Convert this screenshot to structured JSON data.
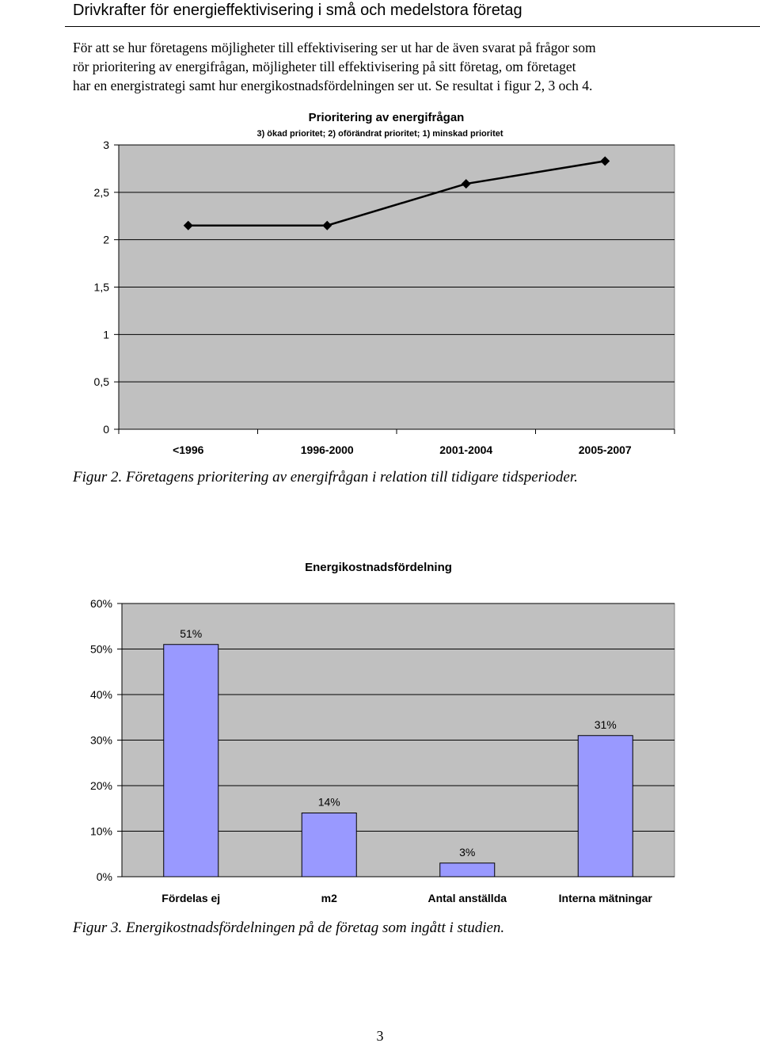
{
  "header": {
    "title": "Drivkrafter för energieffektivisering i små och medelstora företag"
  },
  "intro": {
    "lines": [
      "För att se hur företagens möjligheter till effektivisering ser ut har de även svarat på frågor som",
      "rör prioritering av energifrågan, möjligheter till effektivisering på sitt företag, om företaget",
      "har en energistrategi samt hur energikostnadsfördelningen ser ut. Se resultat i figur 2, 3 och 4."
    ]
  },
  "figure2": {
    "caption": "Figur 2. Företagens prioritering av energifrågan i relation till tidigare tidsperioder.",
    "chart_data": {
      "type": "line",
      "title": "Prioritering av energifrågan",
      "subtitle": "3) ökad prioritet; 2) oförändrat prioritet; 1) minskad prioritet",
      "categories": [
        "<1996",
        "1996-2000",
        "2001-2004",
        "2005-2007"
      ],
      "values": [
        2.15,
        2.15,
        2.59,
        2.83
      ],
      "yticks": [
        "0",
        "0,5",
        "1",
        "1,5",
        "2",
        "2,5",
        "3"
      ],
      "ylim": [
        0,
        3
      ],
      "grid": true,
      "colors": {
        "plot_bg": "#c0c0c0",
        "line": "#000000",
        "marker": "#000000"
      }
    }
  },
  "figure3": {
    "caption": "Figur 3. Energikostnadsfördelningen på de företag som ingått i studien.",
    "chart_data": {
      "type": "bar",
      "title": "Energikostnadsfördelning",
      "categories": [
        "Fördelas ej",
        "m2",
        "Antal anställda",
        "Interna mätningar"
      ],
      "values": [
        51,
        14,
        3,
        31
      ],
      "data_labels": [
        "51%",
        "14%",
        "3%",
        "31%"
      ],
      "yticks": [
        "0%",
        "10%",
        "20%",
        "30%",
        "40%",
        "50%",
        "60%"
      ],
      "ylim": [
        0,
        60
      ],
      "grid": true,
      "colors": {
        "plot_bg": "#c0c0c0",
        "bar": "#9999ff"
      }
    }
  },
  "page": {
    "number": "3"
  }
}
